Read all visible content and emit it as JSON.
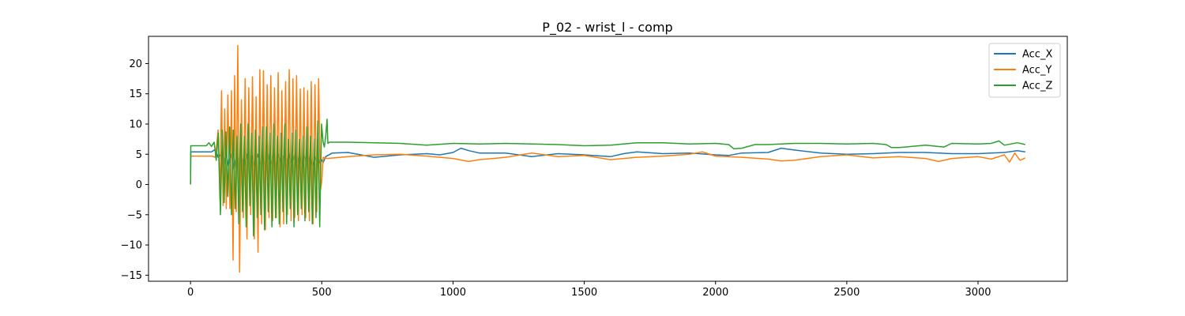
{
  "chart_data": {
    "type": "line",
    "title": "P_02 - wrist_l - comp",
    "xlabel": "",
    "ylabel": "",
    "xlim": [
      -160,
      3340
    ],
    "ylim": [
      -16,
      24.5
    ],
    "xticks": [
      0,
      500,
      1000,
      1500,
      2000,
      2500,
      3000
    ],
    "yticks": [
      -15,
      -10,
      -5,
      0,
      5,
      10,
      15,
      20
    ],
    "ytick_labels": [
      "−15",
      "−10",
      "−5",
      "0",
      "5",
      "10",
      "15",
      "20"
    ],
    "grid": false,
    "legend": "top-right",
    "series": [
      {
        "name": "Acc_X",
        "color": "#1f77b4",
        "points": [
          [
            0,
            0
          ],
          [
            1,
            5.4
          ],
          [
            40,
            5.4
          ],
          [
            80,
            5.4
          ],
          [
            95,
            5.8
          ],
          [
            105,
            4.5
          ],
          [
            115,
            5.0
          ],
          [
            125,
            2.8
          ],
          [
            135,
            5.2
          ],
          [
            145,
            3.0
          ],
          [
            155,
            5.0
          ],
          [
            165,
            2.5
          ],
          [
            175,
            5.1
          ],
          [
            185,
            3.2
          ],
          [
            195,
            4.9
          ],
          [
            205,
            2.6
          ],
          [
            215,
            5.0
          ],
          [
            225,
            3.3
          ],
          [
            235,
            4.8
          ],
          [
            245,
            2.9
          ],
          [
            255,
            5.0
          ],
          [
            265,
            3.4
          ],
          [
            275,
            4.7
          ],
          [
            285,
            2.8
          ],
          [
            295,
            5.1
          ],
          [
            305,
            3.3
          ],
          [
            315,
            4.8
          ],
          [
            325,
            2.7
          ],
          [
            335,
            5.0
          ],
          [
            345,
            3.2
          ],
          [
            355,
            4.7
          ],
          [
            365,
            2.9
          ],
          [
            375,
            5.1
          ],
          [
            385,
            3.4
          ],
          [
            395,
            4.8
          ],
          [
            405,
            2.8
          ],
          [
            415,
            4.9
          ],
          [
            425,
            3.4
          ],
          [
            435,
            4.7
          ],
          [
            445,
            3.1
          ],
          [
            455,
            4.6
          ],
          [
            465,
            3.2
          ],
          [
            475,
            4.5
          ],
          [
            485,
            3.0
          ],
          [
            495,
            4.4
          ],
          [
            505,
            3.6
          ],
          [
            515,
            4.6
          ],
          [
            540,
            5.2
          ],
          [
            600,
            5.3
          ],
          [
            700,
            4.5
          ],
          [
            800,
            4.9
          ],
          [
            900,
            5.1
          ],
          [
            950,
            4.9
          ],
          [
            1000,
            5.3
          ],
          [
            1030,
            6.0
          ],
          [
            1060,
            5.6
          ],
          [
            1100,
            5.2
          ],
          [
            1200,
            5.2
          ],
          [
            1300,
            4.6
          ],
          [
            1400,
            5.1
          ],
          [
            1500,
            4.9
          ],
          [
            1600,
            4.6
          ],
          [
            1650,
            5.1
          ],
          [
            1700,
            5.4
          ],
          [
            1800,
            5.1
          ],
          [
            1900,
            5.2
          ],
          [
            2000,
            4.9
          ],
          [
            2050,
            4.8
          ],
          [
            2100,
            5.2
          ],
          [
            2200,
            5.3
          ],
          [
            2250,
            6.0
          ],
          [
            2300,
            5.7
          ],
          [
            2400,
            5.2
          ],
          [
            2500,
            5.0
          ],
          [
            2600,
            5.1
          ],
          [
            2700,
            5.3
          ],
          [
            2800,
            5.3
          ],
          [
            2900,
            5.1
          ],
          [
            3000,
            5.1
          ],
          [
            3100,
            5.3
          ],
          [
            3150,
            5.6
          ],
          [
            3180,
            5.4
          ]
        ]
      },
      {
        "name": "Acc_Y",
        "color": "#ff7f0e",
        "points": [
          [
            0,
            4.7
          ],
          [
            80,
            4.7
          ],
          [
            95,
            4.5
          ],
          [
            105,
            9.0
          ],
          [
            112,
            -2.5
          ],
          [
            118,
            15.5
          ],
          [
            124,
            -3.5
          ],
          [
            130,
            12.5
          ],
          [
            136,
            -4.0
          ],
          [
            142,
            14.8
          ],
          [
            150,
            -4.0
          ],
          [
            156,
            15.5
          ],
          [
            162,
            -12.5
          ],
          [
            168,
            18.0
          ],
          [
            174,
            -4.5
          ],
          [
            180,
            23.0
          ],
          [
            187,
            -14.5
          ],
          [
            194,
            14.0
          ],
          [
            201,
            -5.5
          ],
          [
            208,
            17.5
          ],
          [
            215,
            -9.0
          ],
          [
            222,
            16.0
          ],
          [
            229,
            -5.0
          ],
          [
            236,
            17.8
          ],
          [
            243,
            -9.0
          ],
          [
            250,
            14.5
          ],
          [
            257,
            -11.2
          ],
          [
            264,
            19.0
          ],
          [
            271,
            -6.5
          ],
          [
            278,
            18.8
          ],
          [
            285,
            -7.5
          ],
          [
            292,
            16.5
          ],
          [
            299,
            -5.5
          ],
          [
            306,
            18.0
          ],
          [
            313,
            -6.0
          ],
          [
            320,
            16.0
          ],
          [
            327,
            -5.5
          ],
          [
            334,
            18.5
          ],
          [
            341,
            -7.0
          ],
          [
            348,
            15.5
          ],
          [
            355,
            -6.5
          ],
          [
            362,
            17.0
          ],
          [
            369,
            -5.0
          ],
          [
            376,
            19.0
          ],
          [
            383,
            -6.0
          ],
          [
            390,
            17.5
          ],
          [
            397,
            -5.5
          ],
          [
            404,
            18.0
          ],
          [
            411,
            -6.0
          ],
          [
            418,
            15.8
          ],
          [
            425,
            -5.0
          ],
          [
            432,
            16.0
          ],
          [
            439,
            -5.5
          ],
          [
            446,
            15.5
          ],
          [
            453,
            -6.0
          ],
          [
            460,
            17.0
          ],
          [
            467,
            -6.5
          ],
          [
            474,
            16.5
          ],
          [
            481,
            -4.5
          ],
          [
            488,
            17.5
          ],
          [
            495,
            -1.0
          ],
          [
            500,
            0.5
          ],
          [
            505,
            4.5
          ],
          [
            520,
            4.3
          ],
          [
            600,
            4.6
          ],
          [
            700,
            4.9
          ],
          [
            800,
            5.0
          ],
          [
            900,
            4.7
          ],
          [
            1000,
            4.3
          ],
          [
            1060,
            3.8
          ],
          [
            1100,
            4.1
          ],
          [
            1200,
            4.5
          ],
          [
            1300,
            5.2
          ],
          [
            1400,
            4.6
          ],
          [
            1500,
            4.8
          ],
          [
            1600,
            4.1
          ],
          [
            1700,
            4.5
          ],
          [
            1800,
            4.7
          ],
          [
            1900,
            5.0
          ],
          [
            1950,
            5.4
          ],
          [
            2000,
            4.7
          ],
          [
            2100,
            4.5
          ],
          [
            2200,
            4.2
          ],
          [
            2250,
            3.9
          ],
          [
            2300,
            4.0
          ],
          [
            2400,
            4.6
          ],
          [
            2500,
            4.9
          ],
          [
            2600,
            4.4
          ],
          [
            2700,
            4.6
          ],
          [
            2800,
            4.3
          ],
          [
            2850,
            3.8
          ],
          [
            2900,
            4.3
          ],
          [
            3000,
            4.6
          ],
          [
            3050,
            4.2
          ],
          [
            3100,
            4.9
          ],
          [
            3120,
            3.7
          ],
          [
            3140,
            5.2
          ],
          [
            3160,
            4.0
          ],
          [
            3180,
            4.4
          ]
        ]
      },
      {
        "name": "Acc_Z",
        "color": "#2ca02c",
        "points": [
          [
            0,
            0
          ],
          [
            1,
            6.4
          ],
          [
            60,
            6.4
          ],
          [
            70,
            6.9
          ],
          [
            80,
            6.3
          ],
          [
            90,
            7.0
          ],
          [
            98,
            4.0
          ],
          [
            106,
            8.5
          ],
          [
            114,
            -5.0
          ],
          [
            121,
            9.0
          ],
          [
            128,
            -3.0
          ],
          [
            135,
            8.7
          ],
          [
            142,
            -2.0
          ],
          [
            149,
            9.5
          ],
          [
            156,
            -5.0
          ],
          [
            163,
            9.0
          ],
          [
            170,
            -4.0
          ],
          [
            177,
            8.0
          ],
          [
            184,
            -6.5
          ],
          [
            191,
            10.0
          ],
          [
            198,
            -4.5
          ],
          [
            205,
            8.0
          ],
          [
            212,
            -7.0
          ],
          [
            219,
            10.0
          ],
          [
            226,
            -3.5
          ],
          [
            233,
            8.5
          ],
          [
            240,
            -8.5
          ],
          [
            247,
            9.0
          ],
          [
            254,
            -5.5
          ],
          [
            261,
            8.0
          ],
          [
            268,
            -5.0
          ],
          [
            275,
            9.5
          ],
          [
            282,
            -7.5
          ],
          [
            289,
            9.5
          ],
          [
            296,
            -4.5
          ],
          [
            303,
            8.5
          ],
          [
            310,
            -7.0
          ],
          [
            317,
            10.0
          ],
          [
            324,
            -5.5
          ],
          [
            331,
            8.0
          ],
          [
            338,
            -6.5
          ],
          [
            345,
            8.5
          ],
          [
            352,
            -4.5
          ],
          [
            359,
            10.0
          ],
          [
            366,
            -6.5
          ],
          [
            373,
            7.5
          ],
          [
            380,
            -4.0
          ],
          [
            387,
            8.5
          ],
          [
            394,
            -7.0
          ],
          [
            401,
            9.0
          ],
          [
            408,
            -5.0
          ],
          [
            415,
            7.5
          ],
          [
            422,
            -4.0
          ],
          [
            429,
            8.0
          ],
          [
            436,
            -6.0
          ],
          [
            443,
            9.5
          ],
          [
            450,
            -4.5
          ],
          [
            457,
            8.0
          ],
          [
            464,
            -6.5
          ],
          [
            471,
            7.5
          ],
          [
            478,
            -5.5
          ],
          [
            485,
            10.5
          ],
          [
            492,
            -7.0
          ],
          [
            499,
            10.0
          ],
          [
            505,
            7.0
          ],
          [
            510,
            6.2
          ],
          [
            515,
            8.0
          ],
          [
            520,
            10.8
          ],
          [
            523,
            6.8
          ],
          [
            530,
            7.0
          ],
          [
            600,
            7.0
          ],
          [
            700,
            6.9
          ],
          [
            800,
            6.8
          ],
          [
            900,
            6.5
          ],
          [
            1000,
            6.8
          ],
          [
            1100,
            6.7
          ],
          [
            1200,
            6.8
          ],
          [
            1300,
            6.7
          ],
          [
            1400,
            6.6
          ],
          [
            1500,
            6.4
          ],
          [
            1600,
            6.5
          ],
          [
            1700,
            6.9
          ],
          [
            1800,
            6.9
          ],
          [
            1900,
            6.7
          ],
          [
            2000,
            6.8
          ],
          [
            2050,
            6.6
          ],
          [
            2070,
            5.9
          ],
          [
            2100,
            6.0
          ],
          [
            2150,
            6.6
          ],
          [
            2200,
            6.6
          ],
          [
            2300,
            6.8
          ],
          [
            2400,
            6.8
          ],
          [
            2500,
            6.7
          ],
          [
            2600,
            6.8
          ],
          [
            2650,
            6.6
          ],
          [
            2670,
            6.1
          ],
          [
            2700,
            6.1
          ],
          [
            2750,
            6.3
          ],
          [
            2800,
            6.5
          ],
          [
            2870,
            6.2
          ],
          [
            2900,
            6.8
          ],
          [
            3000,
            6.7
          ],
          [
            3050,
            6.8
          ],
          [
            3080,
            7.2
          ],
          [
            3100,
            6.5
          ],
          [
            3150,
            6.9
          ],
          [
            3180,
            6.6
          ]
        ]
      }
    ]
  }
}
